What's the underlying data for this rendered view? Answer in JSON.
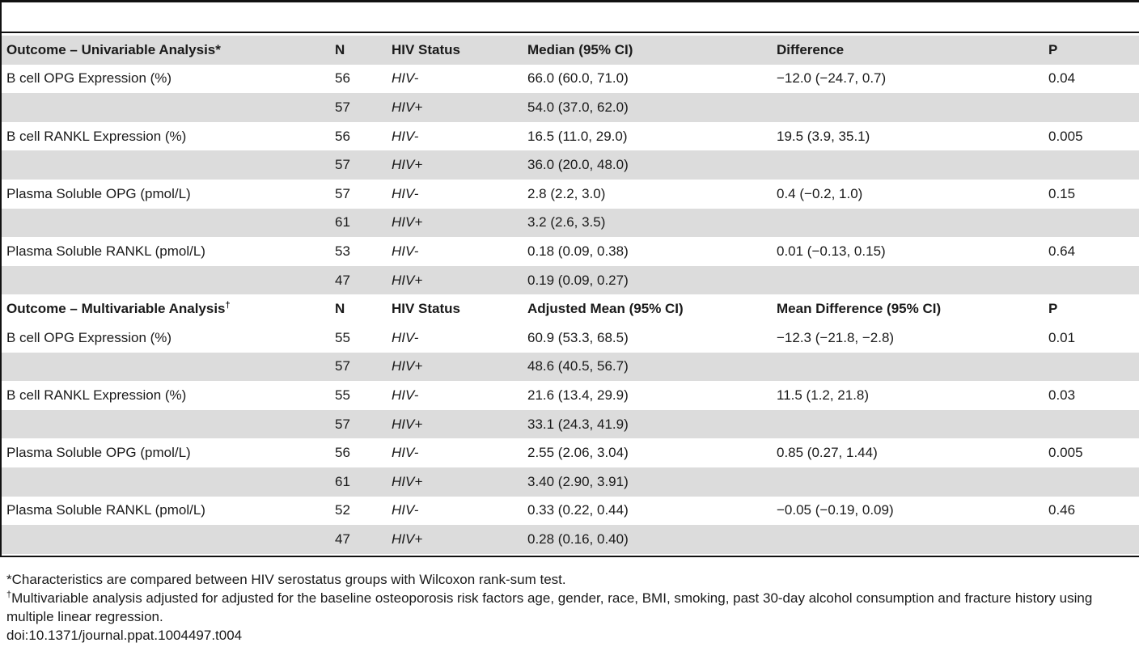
{
  "header_section_1": {
    "outcome": "Outcome – Univariable Analysis",
    "marker": "*",
    "n": "N",
    "status": "HIV Status",
    "estimate": "Median (95% CI)",
    "difference": "Difference",
    "p": "P"
  },
  "rows_section_1": [
    {
      "outcome": "B cell OPG Expression (%)",
      "n": "56",
      "status": "HIV-",
      "estimate": "66.0 (60.0, 71.0)",
      "difference": "−12.0 (−24.7, 0.7)",
      "p": "0.04"
    },
    {
      "outcome": "",
      "n": "57",
      "status": "HIV+",
      "estimate": "54.0 (37.0, 62.0)",
      "difference": "",
      "p": ""
    },
    {
      "outcome": "B cell RANKL Expression (%)",
      "n": "56",
      "status": "HIV-",
      "estimate": "16.5 (11.0, 29.0)",
      "difference": "19.5 (3.9, 35.1)",
      "p": "0.005"
    },
    {
      "outcome": "",
      "n": "57",
      "status": "HIV+",
      "estimate": "36.0 (20.0, 48.0)",
      "difference": "",
      "p": ""
    },
    {
      "outcome": "Plasma Soluble OPG (pmol/L)",
      "n": "57",
      "status": "HIV-",
      "estimate": "2.8 (2.2, 3.0)",
      "difference": "0.4 (−0.2, 1.0)",
      "p": "0.15"
    },
    {
      "outcome": "",
      "n": "61",
      "status": "HIV+",
      "estimate": "3.2 (2.6, 3.5)",
      "difference": "",
      "p": ""
    },
    {
      "outcome": "Plasma Soluble RANKL (pmol/L)",
      "n": "53",
      "status": "HIV-",
      "estimate": "0.18 (0.09, 0.38)",
      "difference": "0.01 (−0.13, 0.15)",
      "p": "0.64"
    },
    {
      "outcome": "",
      "n": "47",
      "status": "HIV+",
      "estimate": "0.19 (0.09, 0.27)",
      "difference": "",
      "p": ""
    }
  ],
  "header_section_2": {
    "outcome": "Outcome – Multivariable Analysis",
    "marker": "†",
    "n": "N",
    "status": "HIV Status",
    "estimate": "Adjusted Mean (95% CI)",
    "difference": "Mean Difference (95% CI)",
    "p": "P"
  },
  "rows_section_2": [
    {
      "outcome": "B cell OPG Expression (%)",
      "n": "55",
      "status": "HIV-",
      "estimate": "60.9 (53.3, 68.5)",
      "difference": "−12.3 (−21.8, −2.8)",
      "p": "0.01"
    },
    {
      "outcome": "",
      "n": "57",
      "status": "HIV+",
      "estimate": "48.6 (40.5, 56.7)",
      "difference": "",
      "p": ""
    },
    {
      "outcome": "B cell RANKL Expression (%)",
      "n": "55",
      "status": "HIV-",
      "estimate": "21.6 (13.4, 29.9)",
      "difference": "11.5 (1.2, 21.8)",
      "p": "0.03"
    },
    {
      "outcome": "",
      "n": "57",
      "status": "HIV+",
      "estimate": "33.1 (24.3, 41.9)",
      "difference": "",
      "p": ""
    },
    {
      "outcome": "Plasma Soluble OPG (pmol/L)",
      "n": "56",
      "status": "HIV-",
      "estimate": "2.55 (2.06, 3.04)",
      "difference": "0.85 (0.27, 1.44)",
      "p": "0.005"
    },
    {
      "outcome": "",
      "n": "61",
      "status": "HIV+",
      "estimate": "3.40 (2.90, 3.91)",
      "difference": "",
      "p": ""
    },
    {
      "outcome": "Plasma Soluble RANKL (pmol/L)",
      "n": "52",
      "status": "HIV-",
      "estimate": "0.33 (0.22, 0.44)",
      "difference": "−0.05 (−0.19, 0.09)",
      "p": "0.46"
    },
    {
      "outcome": "",
      "n": "47",
      "status": "HIV+",
      "estimate": "0.28 (0.16, 0.40)",
      "difference": "",
      "p": ""
    }
  ],
  "footnotes": {
    "note1_marker": "*",
    "note1_text": "Characteristics are compared between HIV serostatus groups with Wilcoxon rank-sum test.",
    "note2_marker": "†",
    "note2_text": "Multivariable analysis adjusted for adjusted for the baseline osteoporosis risk factors age, gender, race, BMI, smoking, past 30-day alcohol consumption and fracture history using multiple linear regression.",
    "doi": "doi:10.1371/journal.ppat.1004497.t004"
  },
  "colors": {
    "row_shade": "#dcdcdc",
    "rule": "#111111"
  }
}
